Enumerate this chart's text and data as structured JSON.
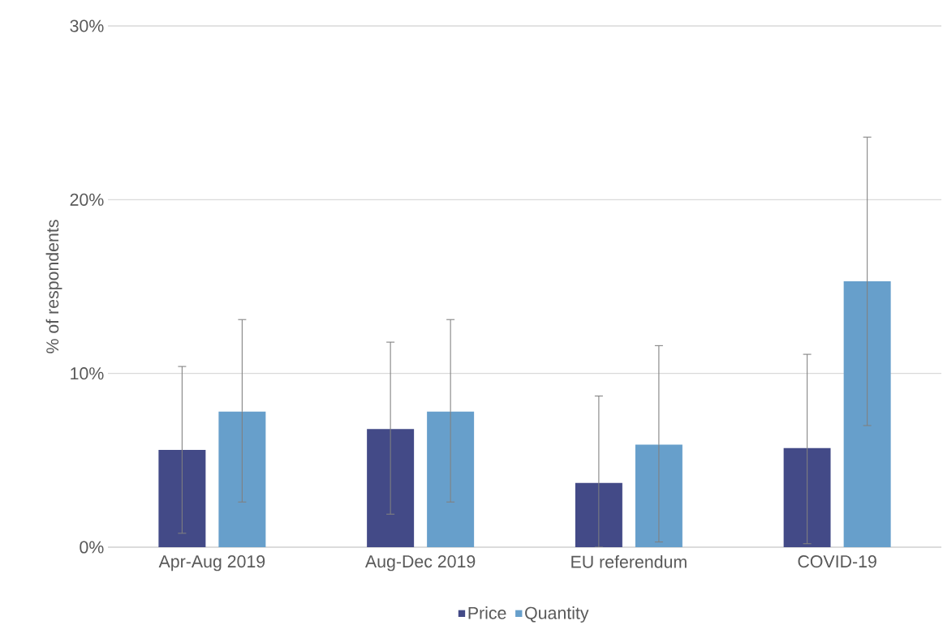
{
  "chart_data": {
    "type": "bar",
    "ylabel": "% of respondents",
    "categories": [
      "Apr-Aug 2019",
      "Aug-Dec 2019",
      "EU referendum",
      "COVID-19"
    ],
    "series": [
      {
        "name": "Price",
        "color": "#434a87",
        "values": [
          5.6,
          6.8,
          3.7,
          5.7
        ],
        "errors": [
          [
            0.8,
            10.4
          ],
          [
            1.9,
            11.8
          ],
          [
            0,
            8.7
          ],
          [
            0.2,
            11.1
          ]
        ]
      },
      {
        "name": "Quantity",
        "color": "#679fcb",
        "values": [
          7.8,
          7.8,
          5.9,
          15.3
        ],
        "errors": [
          [
            2.6,
            13.1
          ],
          [
            2.6,
            13.1
          ],
          [
            0.3,
            11.6
          ],
          [
            7.0,
            23.6
          ]
        ]
      }
    ],
    "ylim": [
      0,
      30
    ],
    "yticks": [
      {
        "value": 0,
        "label": "0%"
      },
      {
        "value": 10,
        "label": "10%"
      },
      {
        "value": 20,
        "label": "20%"
      },
      {
        "value": 30,
        "label": "30%"
      }
    ],
    "grid": "y",
    "legend": "bottom"
  }
}
